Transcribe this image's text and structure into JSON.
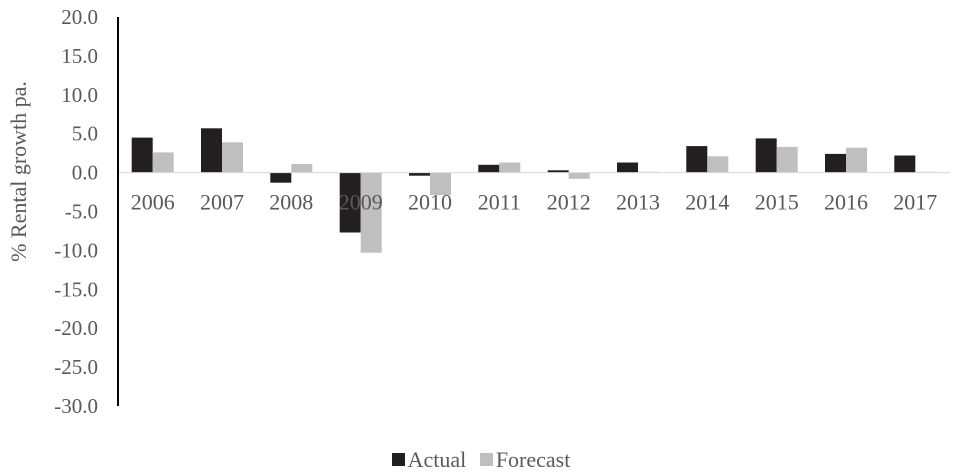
{
  "chart_data": {
    "type": "bar",
    "categories": [
      "2006",
      "2007",
      "2008",
      "2009",
      "2010",
      "2011",
      "2012",
      "2013",
      "2014",
      "2015",
      "2016",
      "2017"
    ],
    "series": [
      {
        "name": "Actual",
        "color": "#231f20",
        "values": [
          4.5,
          5.7,
          -1.3,
          -7.7,
          -0.4,
          1.0,
          0.3,
          1.3,
          3.4,
          4.4,
          2.4,
          2.2
        ]
      },
      {
        "name": "Forecast",
        "color": "#bfbfbf",
        "values": [
          2.6,
          3.9,
          1.1,
          -10.3,
          -2.9,
          1.3,
          -0.8,
          0.1,
          2.1,
          3.3,
          3.2,
          0.1
        ]
      }
    ],
    "yticks": [
      "20.0",
      "15.0",
      "10.0",
      "5.0",
      "0.0",
      "-5.0",
      "-10.0",
      "-15.0",
      "-20.0",
      "-25.0",
      "-30.0"
    ],
    "ylabel": "% Rental growth pa.",
    "ylim": [
      -30,
      20
    ],
    "grid": false,
    "legend_position": "bottom"
  }
}
